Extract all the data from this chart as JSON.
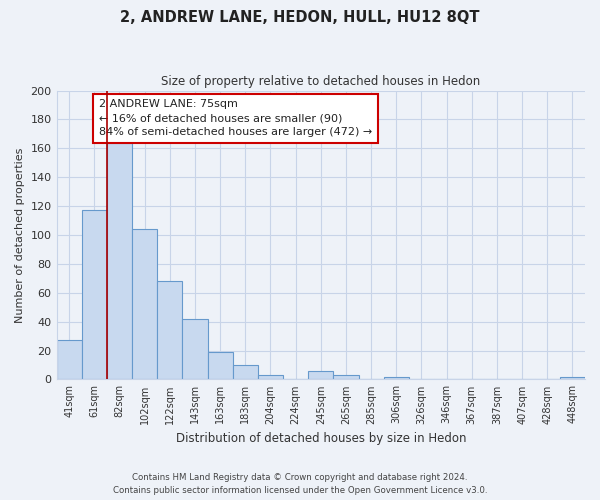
{
  "title": "2, ANDREW LANE, HEDON, HULL, HU12 8QT",
  "subtitle": "Size of property relative to detached houses in Hedon",
  "xlabel": "Distribution of detached houses by size in Hedon",
  "ylabel": "Number of detached properties",
  "bar_color": "#c8d9ef",
  "bar_edge_color": "#6699cc",
  "grid_color": "#c8d4e8",
  "categories": [
    "41sqm",
    "61sqm",
    "82sqm",
    "102sqm",
    "122sqm",
    "143sqm",
    "163sqm",
    "183sqm",
    "204sqm",
    "224sqm",
    "245sqm",
    "265sqm",
    "285sqm",
    "306sqm",
    "326sqm",
    "346sqm",
    "367sqm",
    "387sqm",
    "407sqm",
    "428sqm",
    "448sqm"
  ],
  "values": [
    27,
    117,
    164,
    104,
    68,
    42,
    19,
    10,
    3,
    0,
    6,
    3,
    0,
    2,
    0,
    0,
    0,
    0,
    0,
    0,
    2
  ],
  "ylim": [
    0,
    200
  ],
  "yticks": [
    0,
    20,
    40,
    60,
    80,
    100,
    120,
    140,
    160,
    180,
    200
  ],
  "property_line_x": 1.5,
  "property_line_color": "#aa0000",
  "annotation_text": "2 ANDREW LANE: 75sqm\n← 16% of detached houses are smaller (90)\n84% of semi-detached houses are larger (472) →",
  "annotation_box_color": "#ffffff",
  "annotation_box_edge_color": "#cc0000",
  "footer_line1": "Contains HM Land Registry data © Crown copyright and database right 2024.",
  "footer_line2": "Contains public sector information licensed under the Open Government Licence v3.0.",
  "background_color": "#eef2f8",
  "plot_background_color": "#eef2f8"
}
